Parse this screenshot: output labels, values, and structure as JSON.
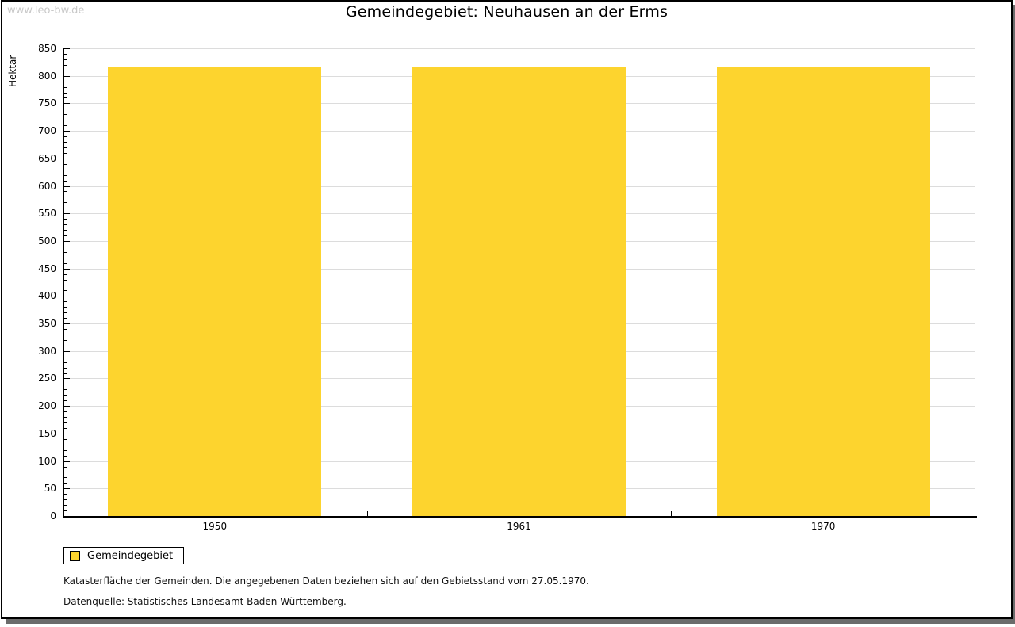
{
  "watermark": "www.leo-bw.de",
  "chart_data": {
    "type": "bar",
    "title": "Gemeindegebiet: Neuhausen an der Erms",
    "categories": [
      "1950",
      "1961",
      "1970"
    ],
    "series": [
      {
        "name": "Gemeindegebiet",
        "color": "#FDD42E",
        "values": [
          816,
          816,
          816
        ]
      }
    ],
    "xlabel": "",
    "ylabel": "Hektar",
    "ylim": [
      0,
      850
    ],
    "y_major_step": 50,
    "y_minor_step": 10,
    "grid": true,
    "grid_color": "#DCDCDC",
    "bar_color": "#FDD42E",
    "legend_position": "bottom-left"
  },
  "legend": {
    "items": [
      {
        "label": "Gemeindegebiet",
        "color": "#FDD42E"
      }
    ]
  },
  "footnotes": [
    "Katasterfläche der Gemeinden. Die angegebenen Daten beziehen sich auf den Gebietsstand vom 27.05.1970.",
    "Datenquelle: Statistisches Landesamt Baden-Württemberg."
  ]
}
